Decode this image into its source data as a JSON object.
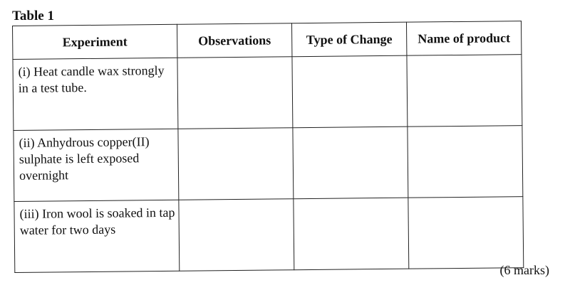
{
  "caption": "Table 1",
  "headers": [
    "Experiment",
    "Observations",
    "Type of Change",
    "Name of product"
  ],
  "rows": [
    {
      "experiment": "(i) Heat candle wax strongly in a test tube.",
      "observations": "",
      "type_of_change": "",
      "name_of_product": ""
    },
    {
      "experiment": "(ii) Anhydrous copper(II) sulphate is left exposed overnight",
      "observations": "",
      "type_of_change": "",
      "name_of_product": ""
    },
    {
      "experiment": "(iii) Iron wool is soaked in tap water for two days",
      "observations": "",
      "type_of_change": "",
      "name_of_product": ""
    }
  ],
  "marks": "(6 marks)"
}
